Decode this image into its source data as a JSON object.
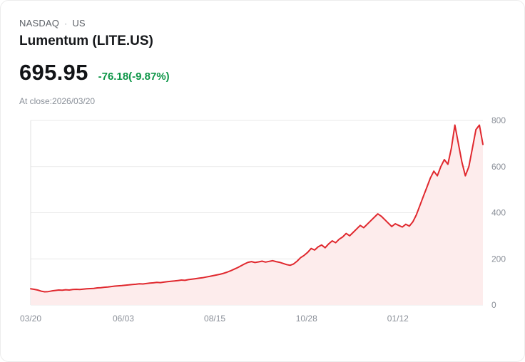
{
  "header": {
    "exchange": "NASDAQ",
    "separator": "·",
    "region": "US",
    "title": "Lumentum (LITE.US)",
    "price": "695.95",
    "change": "-76.18(-9.87%)",
    "close_note": "At close:2026/03/20"
  },
  "colors": {
    "line": "#e0282e",
    "fill": "#fdecec",
    "change_green": "#0e9648",
    "grid": "#e9e9e9",
    "axis_line": "#e0e0e0",
    "axis_text": "#8a8f98"
  },
  "chart_data": {
    "type": "area",
    "title": "Lumentum (LITE.US) price history",
    "xlabel": "",
    "ylabel": "",
    "ylim": [
      0,
      800
    ],
    "y_ticks": [
      0,
      200,
      400,
      600,
      800
    ],
    "y_axis_side": "right",
    "grid": "horizontal",
    "legend": "none",
    "x_tick_labels": [
      "03/20",
      "06/03",
      "08/15",
      "10/28",
      "01/12"
    ],
    "x_tick_positions": [
      0,
      0.205,
      0.407,
      0.61,
      0.812
    ],
    "series": [
      {
        "name": "LITE.US",
        "values": [
          70,
          68,
          65,
          60,
          57,
          58,
          61,
          63,
          65,
          64,
          66,
          65,
          67,
          68,
          67,
          69,
          70,
          71,
          72,
          74,
          75,
          77,
          78,
          80,
          82,
          83,
          84,
          86,
          87,
          89,
          90,
          92,
          91,
          93,
          95,
          96,
          98,
          97,
          99,
          101,
          103,
          104,
          106,
          108,
          107,
          110,
          112,
          114,
          116,
          118,
          121,
          124,
          127,
          130,
          133,
          137,
          142,
          148,
          155,
          162,
          170,
          178,
          185,
          188,
          184,
          187,
          190,
          186,
          189,
          192,
          188,
          185,
          180,
          175,
          172,
          178,
          190,
          205,
          215,
          228,
          245,
          238,
          252,
          260,
          248,
          265,
          278,
          270,
          285,
          295,
          310,
          300,
          315,
          330,
          345,
          335,
          350,
          365,
          380,
          395,
          385,
          370,
          355,
          340,
          352,
          345,
          338,
          350,
          342,
          360,
          390,
          430,
          470,
          510,
          550,
          580,
          560,
          600,
          630,
          610,
          680,
          780,
          700,
          620,
          560,
          600,
          680,
          760,
          780,
          696
        ]
      }
    ]
  }
}
